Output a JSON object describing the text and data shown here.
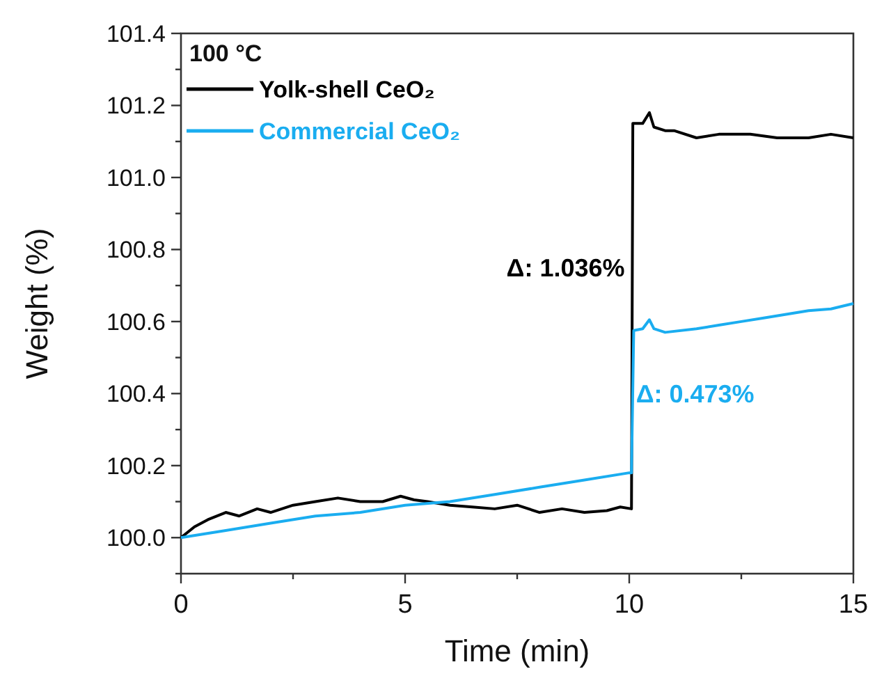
{
  "chart_data": {
    "type": "line",
    "title": "100 °C",
    "xlabel": "Time (min)",
    "ylabel": "Weight (%)",
    "xlim": [
      0,
      15
    ],
    "xticks": [
      0,
      {
        "value": 2.5,
        "label": null
      },
      5,
      {
        "value": 7.5,
        "label": null
      },
      10,
      {
        "value": 12.5,
        "label": null
      },
      15
    ],
    "ylim": [
      99.9,
      101.4
    ],
    "yticks": [
      {
        "value": 99.9,
        "label": null
      },
      {
        "value": 100,
        "label": "100.0"
      },
      {
        "value": 100.1,
        "label": null
      },
      {
        "value": 100.2,
        "label": "100.2"
      },
      {
        "value": 100.3,
        "label": null
      },
      {
        "value": 100.4,
        "label": "100.4"
      },
      {
        "value": 100.5,
        "label": null
      },
      {
        "value": 100.6,
        "label": "100.6"
      },
      {
        "value": 100.7,
        "label": null
      },
      {
        "value": 100.8,
        "label": "100.8"
      },
      {
        "value": 100.9,
        "label": null
      },
      {
        "value": 101,
        "label": "101.0"
      },
      {
        "value": 101.1,
        "label": null
      },
      {
        "value": 101.2,
        "label": "101.2"
      },
      {
        "value": 101.3,
        "label": null
      },
      {
        "value": 101.4,
        "label": "101.4"
      }
    ],
    "grid": false,
    "legend": "top left",
    "marker": "none",
    "line_style": "solid",
    "series": [
      {
        "name": "Yolk-shell CeO₂",
        "color": "#000000",
        "x": [
          0,
          0.3,
          0.6,
          1,
          1.3,
          1.7,
          2,
          2.5,
          3,
          3.5,
          4,
          4.5,
          4.9,
          5.2,
          5.5,
          6,
          6.5,
          7,
          7.5,
          8,
          8.5,
          9,
          9.5,
          9.8,
          10.05,
          10.08,
          10.3,
          10.45,
          10.55,
          10.8,
          11,
          11.5,
          12,
          12.5,
          12.7,
          13.3,
          14,
          14.5,
          15
        ],
        "values": [
          100.0,
          100.03,
          100.05,
          100.07,
          100.06,
          100.08,
          100.07,
          100.09,
          100.1,
          100.11,
          100.1,
          100.1,
          100.115,
          100.105,
          100.1,
          100.09,
          100.085,
          100.08,
          100.09,
          100.07,
          100.08,
          100.07,
          100.075,
          100.085,
          100.08,
          101.15,
          101.15,
          101.18,
          101.14,
          101.13,
          101.13,
          101.11,
          101.12,
          101.12,
          101.12,
          101.11,
          101.11,
          101.12,
          101.11
        ]
      },
      {
        "name": "Commercial CeO₂",
        "color": "#1aadf0",
        "x": [
          0,
          1,
          2,
          3,
          4,
          5,
          6,
          7,
          8,
          9,
          10,
          10.05,
          10.1,
          10.3,
          10.45,
          10.55,
          10.8,
          11.5,
          12,
          12.5,
          13,
          13.5,
          14,
          14.5,
          15
        ],
        "values": [
          100.0,
          100.02,
          100.04,
          100.06,
          100.07,
          100.09,
          100.1,
          100.12,
          100.14,
          100.16,
          100.18,
          100.18,
          100.575,
          100.58,
          100.605,
          100.58,
          100.57,
          100.58,
          100.59,
          100.6,
          100.61,
          100.62,
          100.63,
          100.635,
          100.65
        ]
      }
    ],
    "annotations": [
      {
        "text": "Δ: 1.036%",
        "x": 9.9,
        "y": 100.75
      },
      {
        "text": "Δ: 0.473%",
        "x": 10.15,
        "y": 100.4
      }
    ]
  }
}
